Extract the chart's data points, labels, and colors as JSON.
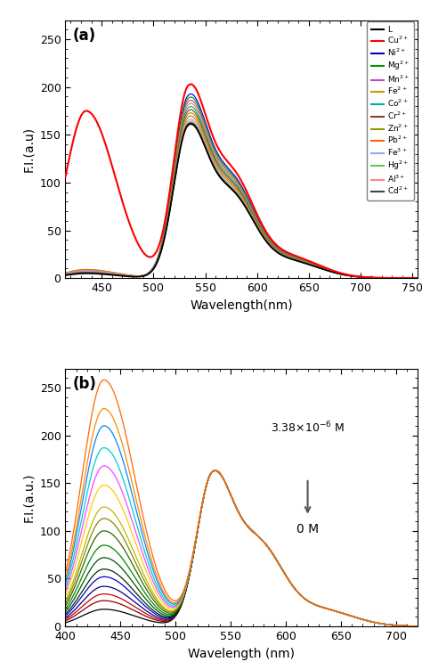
{
  "panel_a": {
    "title": "(a)",
    "xlabel": "Wavelength(nm)",
    "ylabel": "F.I.(a.u)",
    "xlim": [
      415,
      755
    ],
    "ylim": [
      0,
      270
    ],
    "yticks": [
      0,
      50,
      100,
      150,
      200,
      250
    ],
    "xticks": [
      450,
      500,
      550,
      600,
      650,
      700,
      750
    ],
    "species": [
      {
        "label": "L",
        "color": "#000000",
        "p1h": 5,
        "p2h": 147
      },
      {
        "label": "Cu$^{2+}$",
        "color": "#ff0000",
        "p1h": 175,
        "p2h": 184
      },
      {
        "label": "Ni$^{2+}$",
        "color": "#0000cc",
        "p1h": 8,
        "p2h": 175
      },
      {
        "label": "Mg$^{2+}$",
        "color": "#009900",
        "p1h": 8,
        "p2h": 172
      },
      {
        "label": "Mn$^{2+}$",
        "color": "#cc44cc",
        "p1h": 8,
        "p2h": 169
      },
      {
        "label": "Fe$^{2+}$",
        "color": "#cc9900",
        "p1h": 8,
        "p2h": 166
      },
      {
        "label": "Co$^{2+}$",
        "color": "#00aaaa",
        "p1h": 8,
        "p2h": 163
      },
      {
        "label": "Cr$^{2+}$",
        "color": "#884422",
        "p1h": 8,
        "p2h": 160
      },
      {
        "label": "Zn$^{2+}$",
        "color": "#999900",
        "p1h": 9,
        "p2h": 157
      },
      {
        "label": "Pb$^{2+}$",
        "color": "#ff6600",
        "p1h": 9,
        "p2h": 154
      },
      {
        "label": "Fe$^{3+}$",
        "color": "#88aaff",
        "p1h": 8,
        "p2h": 151
      },
      {
        "label": "Hg$^{2+}$",
        "color": "#66cc44",
        "p1h": 7,
        "p2h": 149
      },
      {
        "label": "Al$^{3+}$",
        "color": "#ff8888",
        "p1h": 7,
        "p2h": 148
      },
      {
        "label": "Cd$^{2+}$",
        "color": "#444444",
        "p1h": 6,
        "p2h": 146
      }
    ]
  },
  "panel_b": {
    "title": "(b)",
    "xlabel": "Wavelength (nm)",
    "ylabel": "F.I.(a.u.)",
    "xlim": [
      400,
      720
    ],
    "ylim": [
      0,
      270
    ],
    "yticks": [
      0,
      50,
      100,
      150,
      200,
      250
    ],
    "xticks": [
      400,
      450,
      500,
      550,
      600,
      650,
      700
    ],
    "ann_top": "3.38×10$^{-6}$ M",
    "ann_bottom": "0 M",
    "series_colors": [
      "#000000",
      "#880000",
      "#cc0000",
      "#000088",
      "#0000dd",
      "#003300",
      "#005500",
      "#008800",
      "#336600",
      "#888800",
      "#bbbb00",
      "#ffcc00",
      "#ff44ff",
      "#00cccc",
      "#0088ff",
      "#ff8800",
      "#ff6600"
    ],
    "series_p1h": [
      18,
      27,
      34,
      42,
      52,
      60,
      72,
      85,
      100,
      113,
      125,
      148,
      168,
      187,
      210,
      228,
      258
    ],
    "series_p2h": [
      148,
      148,
      148,
      148,
      148,
      148,
      148,
      148,
      148,
      148,
      148,
      148,
      148,
      148,
      148,
      148,
      148
    ]
  }
}
